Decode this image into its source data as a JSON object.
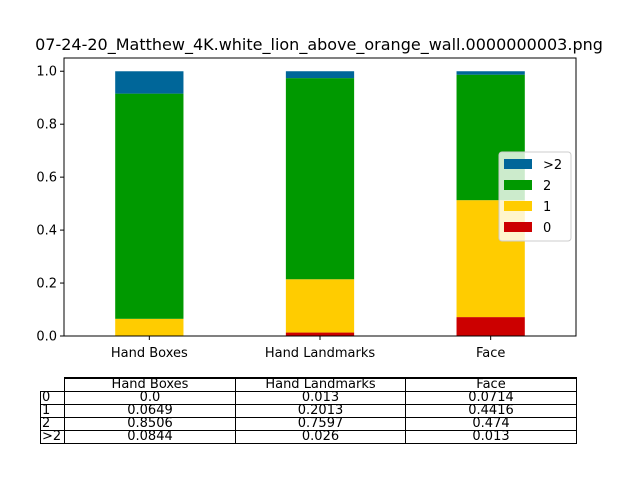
{
  "chart_data": {
    "type": "bar",
    "stacked": true,
    "title": "07-24-20_Matthew_4K.white_lion_above_orange_wall.0000000003.png",
    "categories": [
      "Hand Boxes",
      "Hand Landmarks",
      "Face"
    ],
    "ylim": [
      0,
      1.05
    ],
    "yticks": [
      "0.0",
      "0.2",
      "0.4",
      "0.6",
      "0.8",
      "1.0"
    ],
    "ytick_values": [
      0,
      0.2,
      0.4,
      0.6,
      0.8,
      1.0
    ],
    "grid": false,
    "legend_position": "center-right",
    "series": [
      {
        "name": "0",
        "color": "#cc0000",
        "values": [
          0.0,
          0.013,
          0.0714
        ]
      },
      {
        "name": "1",
        "color": "#ffcc00",
        "values": [
          0.0649,
          0.2013,
          0.4416
        ]
      },
      {
        "name": "2",
        "color": "#009900",
        "values": [
          0.8506,
          0.7597,
          0.474
        ]
      },
      {
        "name": ">2",
        "color": "#006699",
        "values": [
          0.0844,
          0.026,
          0.013
        ]
      }
    ],
    "legend_order": [
      ">2",
      "2",
      "1",
      "0"
    ],
    "table": {
      "columns": [
        "Hand Boxes",
        "Hand Landmarks",
        "Face"
      ],
      "rows": [
        {
          "label": "0",
          "cells": [
            "0.0",
            "0.013",
            "0.0714"
          ]
        },
        {
          "label": "1",
          "cells": [
            "0.0649",
            "0.2013",
            "0.4416"
          ]
        },
        {
          "label": "2",
          "cells": [
            "0.8506",
            "0.7597",
            "0.474"
          ]
        },
        {
          "label": ">2",
          "cells": [
            "0.0844",
            "0.026",
            "0.013"
          ]
        }
      ]
    }
  }
}
